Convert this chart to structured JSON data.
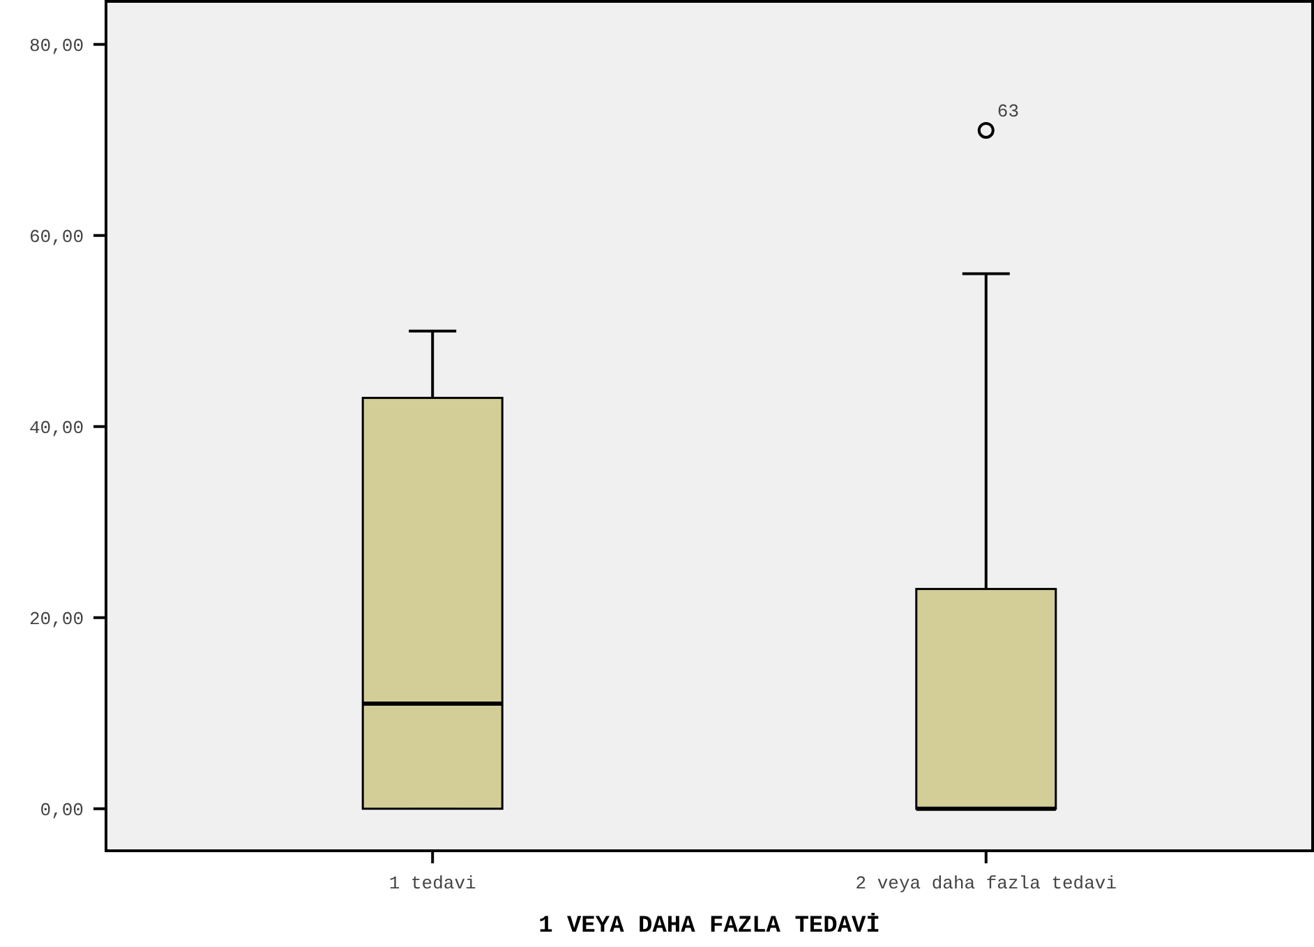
{
  "chart_data": {
    "type": "box",
    "xlabel": "1 VEYA DAHA FAZLA TEDAVİ",
    "categories": [
      "1 tedavi",
      "2 veya daha fazla tedavi"
    ],
    "color": "#d3ce97",
    "boxes": [
      {
        "low": 0,
        "q1": 0,
        "median": 11,
        "q3": 43,
        "high": 50
      },
      {
        "low": 0,
        "q1": 0,
        "median": 0,
        "q3": 23,
        "high": 56,
        "outliers": [
          71
        ]
      }
    ],
    "annotations": [
      "63"
    ],
    "ylim": [
      -4.4,
      84.5
    ],
    "yticks": [
      {
        "value": 0,
        "label": "0,00"
      },
      {
        "value": 20,
        "label": "20,00"
      },
      {
        "value": 40,
        "label": "40,00"
      },
      {
        "value": 60,
        "label": "60,00"
      },
      {
        "value": 80,
        "label": "80,00"
      }
    ],
    "grid": false
  }
}
